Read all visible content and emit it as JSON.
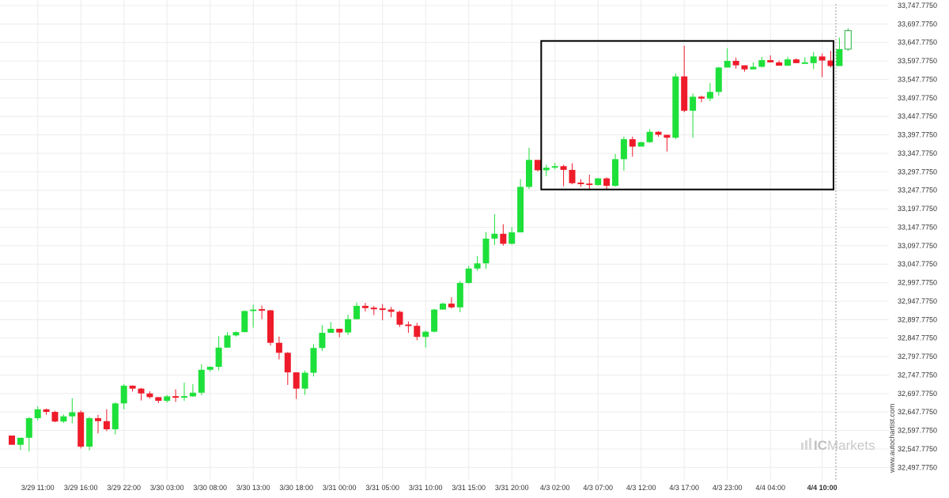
{
  "chart_data": {
    "type": "candlestick",
    "title": "",
    "xlabel": "",
    "ylabel": "",
    "ylim": [
      32472.775,
      33747.775
    ],
    "y_ticks": [
      "33,747.7750",
      "33,697.7750",
      "33,647.7750",
      "33,597.7750",
      "33,547.7750",
      "33,497.7750",
      "33,447.7750",
      "33,397.7750",
      "33,347.7750",
      "33,297.7750",
      "33,247.7750",
      "33,197.7750",
      "33,147.7750",
      "33,097.7750",
      "33,047.7750",
      "32,997.7750",
      "32,947.7750",
      "32,897.7750",
      "32,847.7750",
      "32,797.7750",
      "32,747.7750",
      "32,697.7750",
      "32,647.7750",
      "32,597.7750",
      "32,547.7750",
      "32,497.7750"
    ],
    "y_tick_values": [
      33747.775,
      33697.775,
      33647.775,
      33597.775,
      33547.775,
      33497.775,
      33447.775,
      33397.775,
      33347.775,
      33297.775,
      33247.775,
      33197.775,
      33147.775,
      33097.775,
      33047.775,
      32997.775,
      32947.775,
      32897.775,
      32847.775,
      32797.775,
      32747.775,
      32697.775,
      32647.775,
      32597.775,
      32547.775,
      32497.775
    ],
    "x_ticks": [
      {
        "label": "3/29 11:00",
        "index": 3,
        "bold": false
      },
      {
        "label": "3/29 16:00",
        "index": 8,
        "bold": false
      },
      {
        "label": "3/29 22:00",
        "index": 13,
        "bold": false
      },
      {
        "label": "3/30 03:00",
        "index": 18,
        "bold": false
      },
      {
        "label": "3/30 08:00",
        "index": 23,
        "bold": false
      },
      {
        "label": "3/30 13:00",
        "index": 28,
        "bold": false
      },
      {
        "label": "3/30 18:00",
        "index": 33,
        "bold": false
      },
      {
        "label": "3/31 00:00",
        "index": 38,
        "bold": false
      },
      {
        "label": "3/31 05:00",
        "index": 43,
        "bold": false
      },
      {
        "label": "3/31 10:00",
        "index": 48,
        "bold": false
      },
      {
        "label": "3/31 15:00",
        "index": 53,
        "bold": false
      },
      {
        "label": "3/31 20:00",
        "index": 58,
        "bold": false
      },
      {
        "label": "4/3 02:00",
        "index": 63,
        "bold": false
      },
      {
        "label": "4/3 07:00",
        "index": 68,
        "bold": false
      },
      {
        "label": "4/3 12:00",
        "index": 73,
        "bold": false
      },
      {
        "label": "4/3 17:00",
        "index": 78,
        "bold": false
      },
      {
        "label": "4/3 23:00",
        "index": 83,
        "bold": false
      },
      {
        "label": "4/4 04:00",
        "index": 88,
        "bold": false
      },
      {
        "label": "4/4 10:00",
        "index": 94,
        "bold": true
      }
    ],
    "candles": [
      [
        32584,
        32559,
        32584,
        32559
      ],
      [
        32559,
        32578,
        32545,
        32545
      ],
      [
        32578,
        32631,
        32634,
        32541
      ],
      [
        32631,
        32655,
        32663,
        32625
      ],
      [
        32655,
        32648,
        32657,
        32640
      ],
      [
        32648,
        32622,
        32651,
        32620
      ],
      [
        32622,
        32636,
        32641,
        32618
      ],
      [
        32636,
        32647,
        32685,
        32617
      ],
      [
        32647,
        32554,
        32652,
        32549
      ],
      [
        32554,
        32631,
        32634,
        32544
      ],
      [
        32631,
        32623,
        32640,
        32590
      ],
      [
        32623,
        32601,
        32655,
        32596
      ],
      [
        32601,
        32671,
        32674,
        32587
      ],
      [
        32671,
        32719,
        32723,
        32655
      ],
      [
        32719,
        32711,
        32720,
        32703
      ],
      [
        32711,
        32698,
        32713,
        32679
      ],
      [
        32698,
        32688,
        32704,
        32684
      ],
      [
        32688,
        32678,
        32686,
        32672
      ],
      [
        32678,
        32690,
        32694,
        32673
      ],
      [
        32690,
        32687,
        32709,
        32675
      ],
      [
        32687,
        32690,
        32727,
        32678
      ],
      [
        32690,
        32700,
        32723,
        32689
      ],
      [
        32700,
        32762,
        32777,
        32693
      ],
      [
        32762,
        32770,
        32771,
        32757
      ],
      [
        32770,
        32822,
        32853,
        32760
      ],
      [
        32822,
        32855,
        32864,
        32822
      ],
      [
        32855,
        32864,
        32866,
        32852
      ],
      [
        32864,
        32921,
        32923,
        32863
      ],
      [
        32921,
        32925,
        32938,
        32876
      ],
      [
        32925,
        32923,
        32936,
        32899
      ],
      [
        32923,
        32835,
        32924,
        32828
      ],
      [
        32835,
        32808,
        32852,
        32790
      ],
      [
        32808,
        32755,
        32810,
        32721
      ],
      [
        32755,
        32711,
        32755,
        32683
      ],
      [
        32711,
        32754,
        32760,
        32694
      ],
      [
        32754,
        32821,
        32831,
        32744
      ],
      [
        32821,
        32862,
        32883,
        32813
      ],
      [
        32862,
        32873,
        32891,
        32863
      ],
      [
        32873,
        32863,
        32870,
        32850
      ],
      [
        32863,
        32899,
        32911,
        32856
      ],
      [
        32899,
        32935,
        32944,
        32898
      ],
      [
        32935,
        32929,
        32943,
        32920
      ],
      [
        32929,
        32927,
        32935,
        32910
      ],
      [
        32927,
        32925,
        32940,
        32896
      ],
      [
        32925,
        32919,
        32932,
        32904
      ],
      [
        32919,
        32884,
        32922,
        32878
      ],
      [
        32884,
        32881,
        32893,
        32862
      ],
      [
        32881,
        32851,
        32889,
        32842
      ],
      [
        32851,
        32865,
        32868,
        32822
      ],
      [
        32865,
        32925,
        32927,
        32863
      ],
      [
        32925,
        32941,
        32944,
        32927
      ],
      [
        32941,
        32931,
        32958,
        32928
      ],
      [
        32931,
        32997,
        33002,
        32918
      ],
      [
        32997,
        33036,
        33043,
        32995
      ],
      [
        33036,
        33050,
        33070,
        33030
      ],
      [
        33050,
        33117,
        33135,
        33035
      ],
      [
        33117,
        33130,
        33183,
        33100
      ],
      [
        33130,
        33103,
        33156,
        33098
      ],
      [
        33103,
        33134,
        33148,
        33101
      ],
      [
        33134,
        33257,
        33278,
        33134
      ],
      [
        33257,
        33330,
        33363,
        33251
      ],
      [
        33330,
        33302,
        33329,
        33299
      ],
      [
        33302,
        33309,
        33317,
        33286
      ],
      [
        33309,
        33313,
        33322,
        33304
      ],
      [
        33313,
        33303,
        33317,
        33259
      ],
      [
        33303,
        33267,
        33321,
        33264
      ],
      [
        33267,
        33266,
        33278,
        33257
      ],
      [
        33266,
        33262,
        33290,
        33251
      ],
      [
        33262,
        33280,
        33281,
        33260
      ],
      [
        33280,
        33260,
        33283,
        33251
      ],
      [
        33260,
        33332,
        33346,
        33258
      ],
      [
        33332,
        33386,
        33393,
        33301
      ],
      [
        33386,
        33366,
        33393,
        33339
      ],
      [
        33366,
        33378,
        33379,
        33367
      ],
      [
        33378,
        33406,
        33413,
        33376
      ],
      [
        33406,
        33398,
        33408,
        33393
      ],
      [
        33398,
        33390,
        33394,
        33353
      ],
      [
        33390,
        33556,
        33564,
        33386
      ],
      [
        33556,
        33463,
        33639,
        33459
      ],
      [
        33463,
        33501,
        33510,
        33390
      ],
      [
        33501,
        33496,
        33504,
        33486
      ],
      [
        33496,
        33514,
        33538,
        33489
      ],
      [
        33514,
        33580,
        33582,
        33504
      ],
      [
        33580,
        33598,
        33632,
        33595
      ],
      [
        33598,
        33586,
        33607,
        33577
      ],
      [
        33586,
        33575,
        33580,
        33569
      ],
      [
        33575,
        33582,
        33594,
        33577
      ],
      [
        33582,
        33600,
        33609,
        33580
      ],
      [
        33600,
        33594,
        33613,
        33595
      ],
      [
        33594,
        33585,
        33599,
        33590
      ],
      [
        33585,
        33602,
        33609,
        33584
      ],
      [
        33602,
        33592,
        33605,
        33595
      ],
      [
        33592,
        33592,
        33608,
        33592
      ],
      [
        33592,
        33610,
        33622,
        33576
      ],
      [
        33610,
        33599,
        33618,
        33554
      ],
      [
        33599,
        33584,
        33625,
        33580
      ],
      [
        33584,
        33630,
        33661,
        33585
      ],
      [
        33630,
        33680,
        33686,
        33625
      ]
    ],
    "highlight_box": {
      "from_index": 62,
      "to_index": 95,
      "y_top": 33652,
      "y_bottom": 33250
    },
    "last_candle_hollow": true,
    "dashed_marker_index": 96,
    "colors": {
      "up": "#1ee03a",
      "down": "#ee1c2a",
      "hollow_stroke": "#22b33a",
      "box": "#000000",
      "grid": "#ececec",
      "axis_text": "#333333"
    }
  },
  "watermark": {
    "domain": "www.autochartist.com",
    "brand_prefix": "IC",
    "brand_suffix": "Markets"
  }
}
